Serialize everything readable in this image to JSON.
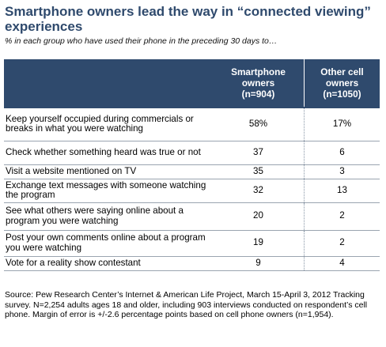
{
  "title": "Smartphone owners lead the way in “connected viewing” experiences",
  "subtitle": "% in each group who have used their phone in the preceding 30 days to…",
  "chart_data": {
    "type": "table",
    "columns": [
      {
        "lines": [
          "Smartphone",
          "owners",
          "(n=904)"
        ]
      },
      {
        "lines": [
          "Other cell owners",
          "(n=1050)"
        ]
      }
    ],
    "rows": [
      {
        "label": "Keep yourself occupied during commercials or breaks in what you were watching",
        "values": [
          "58%",
          "17%"
        ]
      },
      {
        "label": "Check whether something heard was true or not",
        "values": [
          "37",
          "6"
        ]
      },
      {
        "label": "Visit a website mentioned on TV",
        "values": [
          "35",
          "3"
        ]
      },
      {
        "label": "Exchange text messages with someone watching the program",
        "values": [
          "32",
          "13"
        ]
      },
      {
        "label": "See what others were saying online about a program you were watching",
        "values": [
          "20",
          "2"
        ]
      },
      {
        "label": "Post your own comments online about a program you were watching",
        "values": [
          "19",
          "2"
        ]
      },
      {
        "label": "Vote for a reality show contestant",
        "values": [
          "9",
          "4"
        ]
      }
    ]
  },
  "source": "Source: Pew Research Center’s Internet & American Life Project, March 15-April 3, 2012 Tracking survey. N=2,254 adults ages 18 and older, including 903 interviews conducted on respondent’s cell phone. Margin of error is +/-2.6 percentage points based on cell phone owners (n=1,954).",
  "colors": {
    "header_bg": "#2f4a6d",
    "title": "#2f4a6d",
    "header_text": "#ffffff"
  }
}
